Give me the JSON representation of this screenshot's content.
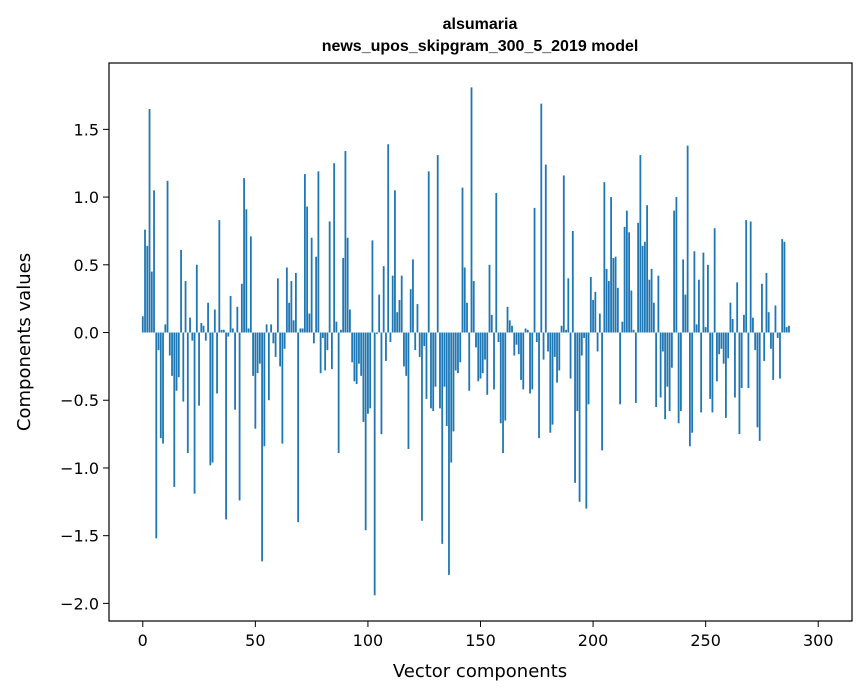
{
  "chart_data": {
    "type": "bar",
    "title_line1": "alsumaria",
    "title_line2": "news_upos_skipgram_300_5_2019 model",
    "xlabel": "Vector components",
    "ylabel": "Components values",
    "xlim": [
      -15,
      315
    ],
    "ylim": [
      -2.13,
      1.99
    ],
    "xticks": [
      0,
      50,
      100,
      150,
      200,
      250,
      300
    ],
    "xtick_labels": [
      "0",
      "50",
      "100",
      "150",
      "200",
      "250",
      "300"
    ],
    "yticks": [
      1.5,
      1.0,
      0.5,
      0.0,
      -0.5,
      -1.0,
      -1.5,
      -2.0
    ],
    "ytick_labels": [
      "1.5",
      "1.0",
      "0.5",
      "0.0",
      "−0.5",
      "−1.0",
      "−1.5",
      "−2.0"
    ],
    "color": "#1f77b4",
    "values": [
      0.12,
      0.76,
      0.64,
      1.65,
      0.45,
      1.05,
      -1.52,
      -0.13,
      -0.78,
      -0.82,
      0.06,
      1.12,
      -0.17,
      -0.32,
      -1.14,
      -0.43,
      -0.33,
      0.61,
      -0.51,
      0.38,
      -0.89,
      0.11,
      -0.06,
      -1.19,
      0.5,
      -0.54,
      0.07,
      0.05,
      -0.06,
      0.22,
      -0.98,
      -0.96,
      0.17,
      -0.45,
      0.83,
      0.02,
      0.02,
      -1.38,
      -0.03,
      0.27,
      0.03,
      -0.57,
      0.19,
      -1.24,
      0.36,
      1.14,
      0.91,
      0.03,
      0.71,
      -0.32,
      -0.71,
      -0.3,
      -0.23,
      -1.69,
      -0.84,
      0.06,
      -0.5,
      0.06,
      -0.08,
      -0.18,
      0.4,
      -0.25,
      -0.82,
      -0.12,
      0.48,
      0.22,
      0.38,
      0.09,
      0.44,
      -1.4,
      0.03,
      0.03,
      1.17,
      0.93,
      0.14,
      0.7,
      -0.08,
      0.56,
      1.19,
      -0.3,
      -0.04,
      -0.28,
      -0.13,
      0.82,
      -0.27,
      1.25,
      0.08,
      -0.89,
      0.02,
      0.55,
      1.34,
      0.7,
      0.17,
      -0.22,
      -0.36,
      -0.38,
      -0.23,
      -0.32,
      -0.66,
      -1.46,
      -0.6,
      -0.56,
      0.68,
      -1.94,
      -0.01,
      0.28,
      -0.75,
      0.49,
      -0.21,
      1.39,
      -0.07,
      0.42,
      1.05,
      0.15,
      0.24,
      0.42,
      -0.25,
      -0.32,
      -0.86,
      0.32,
      0.54,
      -0.13,
      0.21,
      -0.18,
      -1.39,
      -0.1,
      -0.49,
      1.19,
      -0.56,
      -0.58,
      -0.4,
      1.31,
      -0.56,
      -1.56,
      -0.4,
      -0.69,
      -1.79,
      -0.96,
      -0.73,
      -0.28,
      -0.3,
      -0.22,
      1.07,
      0.48,
      0.22,
      -0.43,
      1.81,
      0.38,
      -0.11,
      -0.36,
      -0.34,
      -0.3,
      -0.2,
      -0.46,
      0.5,
      0.13,
      -0.42,
      1.03,
      -0.07,
      -0.67,
      -0.89,
      -0.65,
      0.19,
      0.09,
      0.05,
      -0.17,
      -0.09,
      -0.16,
      -0.35,
      -0.42,
      0.03,
      0.02,
      -0.45,
      -0.42,
      0.92,
      -0.07,
      -0.78,
      1.69,
      -0.2,
      1.24,
      -0.14,
      -0.74,
      -0.68,
      -0.18,
      -0.37,
      -0.28,
      0.05,
      1.16,
      0.02,
      0.4,
      -0.34,
      0.75,
      -1.11,
      -0.58,
      -1.25,
      -0.17,
      -0.04,
      -1.3,
      -0.53,
      0.41,
      0.24,
      0.3,
      -0.14,
      0.14,
      -0.87,
      1.11,
      0.47,
      0.38,
      1.0,
      0.55,
      0.56,
      0.33,
      -0.53,
      0.08,
      0.78,
      0.9,
      0.74,
      0.31,
      0.02,
      -0.52,
      0.81,
      1.31,
      0.64,
      0.67,
      0.94,
      0.39,
      0.47,
      0.22,
      -0.55,
      0.42,
      -0.48,
      -0.14,
      -0.64,
      -0.4,
      -0.58,
      -0.26,
      0.9,
      1.0,
      -0.67,
      -0.58,
      0.54,
      0.28,
      1.38,
      -0.84,
      -0.74,
      0.6,
      0.06,
      0.39,
      -0.59,
      0.59,
      0.04,
      0.5,
      -0.49,
      -0.59,
      0.77,
      -0.36,
      -0.16,
      -0.12,
      -0.23,
      -0.63,
      -0.19,
      0.22,
      0.1,
      -0.48,
      0.37,
      -0.75,
      -0.41,
      0.13,
      0.83,
      -0.41,
      0.82,
      0.11,
      -0.13,
      -0.7,
      -0.8,
      0.36,
      -0.21,
      0.44,
      0.15,
      -0.12,
      -0.35,
      0.2,
      -0.04,
      -0.34,
      0.69,
      0.67,
      0.04,
      0.05
    ]
  }
}
